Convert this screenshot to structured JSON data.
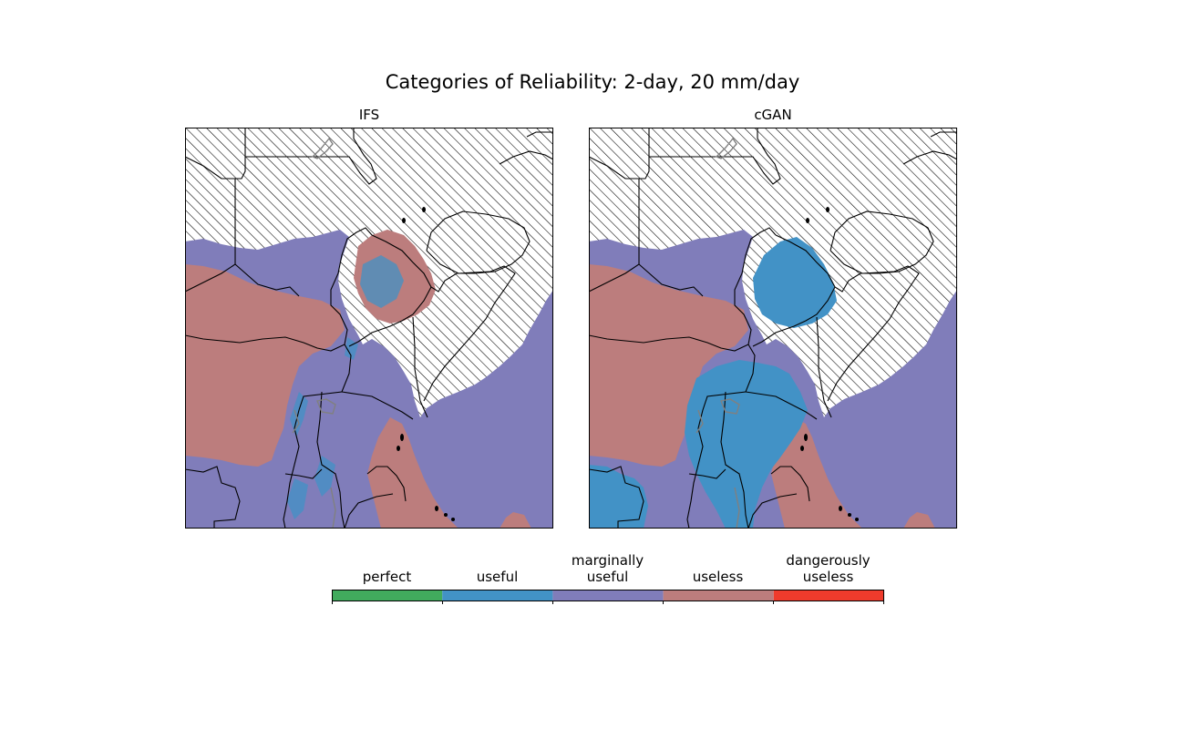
{
  "figure": {
    "title": "Categories of Reliability: 2-day, 20 mm/day"
  },
  "panels": [
    {
      "id": "left",
      "title": "IFS"
    },
    {
      "id": "right",
      "title": "cGAN"
    }
  ],
  "colorbar": {
    "categories": [
      {
        "label": "perfect",
        "color": "#41ab5d"
      },
      {
        "label": "useful",
        "color": "#4292c6"
      },
      {
        "label": "marginally useful",
        "color": "#807dba"
      },
      {
        "label": "useless",
        "color": "#bc7d7d"
      },
      {
        "label": "dangerously useless",
        "color": "#ef3b2c"
      }
    ]
  },
  "map_legend_colors": {
    "hatched_no_data": "#ffffff",
    "coastline": "#000000",
    "lakes": "#808080"
  }
}
